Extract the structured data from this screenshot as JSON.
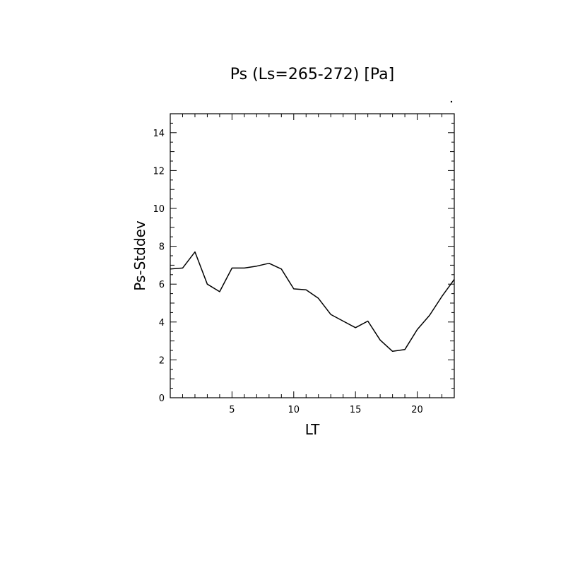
{
  "chart_data": {
    "type": "line",
    "title": "Ps (Ls=265-272) [Pa]",
    "xlabel": "LT",
    "ylabel": "Ps-Stddev",
    "xlim": [
      0,
      23
    ],
    "ylim": [
      0,
      15
    ],
    "x_ticks": [
      5,
      10,
      15,
      20
    ],
    "y_ticks": [
      0,
      2,
      4,
      6,
      8,
      10,
      12,
      14
    ],
    "grid": false,
    "series": [
      {
        "name": "",
        "x": [
          0,
          1,
          2,
          3,
          4,
          5,
          6,
          7,
          8,
          9,
          10,
          11,
          12,
          13,
          14,
          15,
          16,
          17,
          18,
          19,
          20,
          21,
          22,
          23
        ],
        "y": [
          6.8,
          6.85,
          7.7,
          6.0,
          5.6,
          6.85,
          6.85,
          6.95,
          7.1,
          6.8,
          5.75,
          5.7,
          5.25,
          4.4,
          4.05,
          3.7,
          4.05,
          3.05,
          2.45,
          2.55,
          3.6,
          4.35,
          5.35,
          6.25
        ]
      }
    ],
    "colors": {
      "line": "#000000",
      "axis": "#000000"
    }
  }
}
